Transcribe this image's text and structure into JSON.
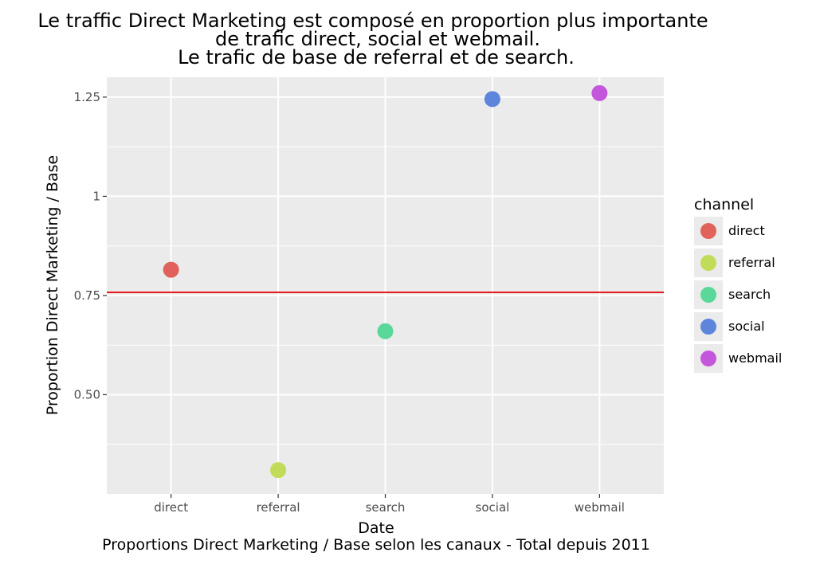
{
  "chart_data": {
    "type": "scatter",
    "title_lines": [
      "Le traffic Direct Marketing est composé en proportion plus importante",
      "de trafic direct, social et webmail.",
      "Le trafic de base de referral et de search."
    ],
    "caption": "Proportions Direct Marketing / Base selon les canaux - Total depuis 2011",
    "xlabel": "Date",
    "ylabel": "Proportion Direct Marketing / Base",
    "categories": [
      "direct",
      "referral",
      "search",
      "social",
      "webmail"
    ],
    "points": [
      {
        "x": "direct",
        "y": 0.815,
        "channel": "direct"
      },
      {
        "x": "referral",
        "y": 0.31,
        "channel": "referral"
      },
      {
        "x": "search",
        "y": 0.66,
        "channel": "search"
      },
      {
        "x": "social",
        "y": 1.245,
        "channel": "social"
      },
      {
        "x": "webmail",
        "y": 1.26,
        "channel": "webmail"
      }
    ],
    "hline": {
      "y": 0.758,
      "color": "#e31a1c"
    },
    "ylim": [
      0.25,
      1.3
    ],
    "yticks": [
      0.5,
      0.75,
      1,
      1.25
    ],
    "ytick_labels": [
      "0.50",
      "0.75",
      "1",
      "1.25"
    ],
    "minor_yticks": [
      0.375,
      0.625,
      0.875,
      1.125
    ],
    "grid": true,
    "legend": {
      "title": "channel",
      "position": "right",
      "entries": [
        {
          "label": "direct",
          "color": "#e0625a"
        },
        {
          "label": "referral",
          "color": "#c0dc58"
        },
        {
          "label": "search",
          "color": "#5ad89a"
        },
        {
          "label": "social",
          "color": "#5e85dc"
        },
        {
          "label": "webmail",
          "color": "#c456dc"
        }
      ]
    }
  }
}
